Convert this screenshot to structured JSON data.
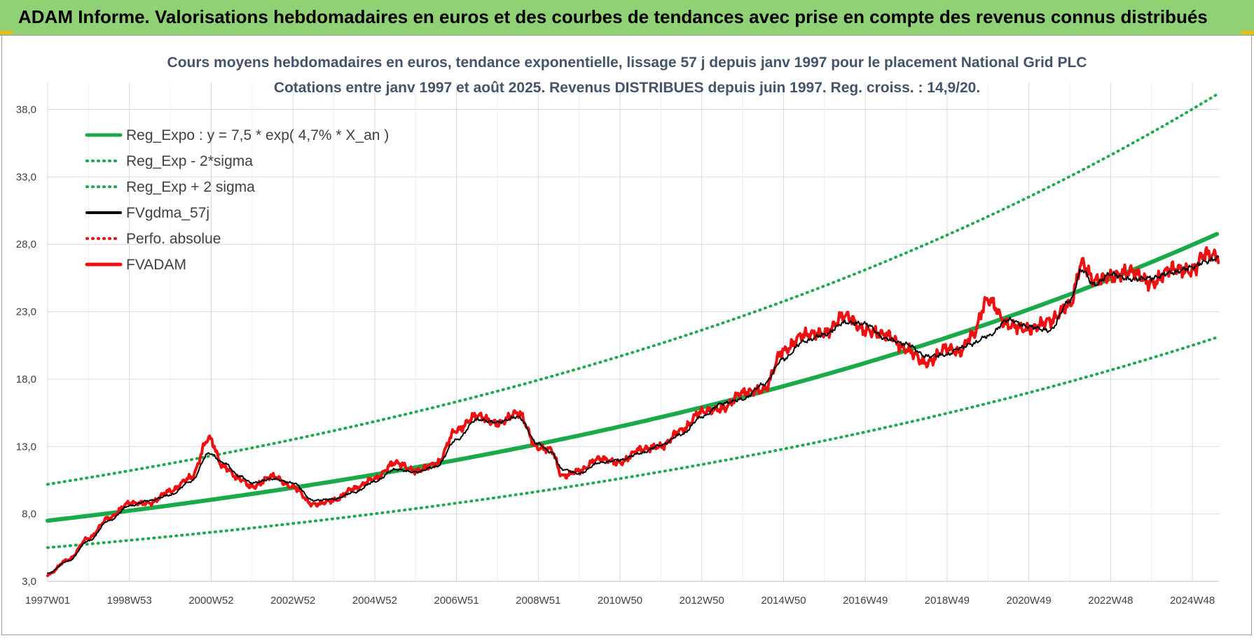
{
  "banner": {
    "title": "ADAM Informe. Valorisations hebdomadaires en euros et des courbes de tendances avec prise en compte des revenus connus distribués"
  },
  "colors": {
    "banner_bg": "#8fd174",
    "trend": "#1aaa4a",
    "fv": "#000000",
    "adam": "#ee1111",
    "perf": "#ee1111",
    "grid": "#d9d9d9"
  },
  "chart_data": {
    "type": "line",
    "title": "Cours moyens hebdomadaires en euros, tendance exponentielle, lissage 57 j depuis janv 1997 pour le placement National Grid PLC",
    "subtitle": "Cotations entre janv 1997 et août 2025. Revenus DISTRIBUES depuis juin 1997. Reg. croiss. : 14,9/20.",
    "xlabel": "",
    "ylabel": "",
    "xlim": [
      1997.0,
      2025.65
    ],
    "ylim": [
      3,
      40
    ],
    "y_ticks": [
      "3,0",
      "8,0",
      "13,0",
      "18,0",
      "23,0",
      "28,0",
      "33,0",
      "38,0"
    ],
    "y_tick_values": [
      3,
      8,
      13,
      18,
      23,
      28,
      33,
      38
    ],
    "x_ticks": [
      "1997W01",
      "1998W53",
      "2000W52",
      "2002W52",
      "2004W52",
      "2006W51",
      "2008W51",
      "2010W50",
      "2012W50",
      "2014W50",
      "2016W49",
      "2018W49",
      "2020W49",
      "2022W48",
      "2024W48"
    ],
    "x_tick_values": [
      1997.0,
      1999.0,
      2001.0,
      2003.0,
      2005.0,
      2007.0,
      2009.0,
      2011.0,
      2013.0,
      2015.0,
      2017.0,
      2019.0,
      2021.0,
      2023.0,
      2025.0
    ],
    "grid": true,
    "legend_position": "top-left",
    "series": [
      {
        "name": "Reg_Expo : y = 7,5 * exp( 4,7% *  X_an )",
        "style": "solid-thick",
        "color": "#1aaa4a",
        "x": [
          1997.0,
          1999.0,
          2001.0,
          2003.0,
          2005.0,
          2007.0,
          2009.0,
          2011.0,
          2013.0,
          2015.0,
          2017.0,
          2019.0,
          2021.0,
          2023.0,
          2025.0,
          2025.65
        ],
        "y": [
          7.5,
          8.24,
          9.05,
          9.93,
          10.9,
          11.97,
          13.15,
          14.44,
          15.85,
          17.41,
          19.11,
          20.99,
          23.05,
          25.31,
          27.79,
          28.65
        ]
      },
      {
        "name": "Reg_Exp - 2*sigma",
        "style": "dotted",
        "color": "#1aaa4a",
        "x": [
          1997.0,
          1999.0,
          2001.0,
          2003.0,
          2005.0,
          2007.0,
          2009.0,
          2011.0,
          2013.0,
          2015.0,
          2017.0,
          2019.0,
          2021.0,
          2023.0,
          2025.0,
          2025.65
        ],
        "y": [
          5.5,
          6.04,
          6.63,
          7.28,
          7.99,
          8.78,
          9.64,
          10.59,
          11.62,
          12.77,
          14.02,
          15.39,
          16.9,
          18.56,
          20.38,
          21.0
        ]
      },
      {
        "name": "Reg_Exp + 2 sigma",
        "style": "dotted",
        "color": "#1aaa4a",
        "x": [
          1997.0,
          1999.0,
          2001.0,
          2003.0,
          2005.0,
          2007.0,
          2009.0,
          2011.0,
          2013.0,
          2015.0,
          2017.0,
          2019.0,
          2021.0,
          2023.0,
          2025.0,
          2025.65
        ],
        "y": [
          10.2,
          11.2,
          12.3,
          13.5,
          14.83,
          16.28,
          17.88,
          19.63,
          21.56,
          23.67,
          26.0,
          28.55,
          31.35,
          34.42,
          37.8,
          38.96
        ]
      },
      {
        "name": "FVgdma_57j",
        "style": "solid",
        "color": "#000000",
        "x": [
          1997.0,
          1997.5,
          1998.0,
          1998.5,
          1999.0,
          1999.5,
          2000.0,
          2000.5,
          2000.95,
          2001.3,
          2001.7,
          2002.0,
          2002.5,
          2003.0,
          2003.5,
          2004.0,
          2004.5,
          2005.0,
          2005.5,
          2006.0,
          2006.5,
          2007.0,
          2007.5,
          2008.0,
          2008.5,
          2009.0,
          2009.3,
          2009.6,
          2010.0,
          2010.5,
          2011.0,
          2011.5,
          2012.0,
          2012.5,
          2013.0,
          2013.5,
          2014.0,
          2014.5,
          2015.0,
          2015.5,
          2016.0,
          2016.5,
          2017.0,
          2017.5,
          2018.0,
          2018.5,
          2019.0,
          2019.3,
          2019.6,
          2020.0,
          2020.5,
          2021.0,
          2021.5,
          2022.0,
          2022.3,
          2022.6,
          2023.0,
          2023.5,
          2024.0,
          2024.5,
          2025.0,
          2025.3,
          2025.65
        ],
        "y": [
          3.6,
          4.5,
          6.0,
          7.5,
          8.6,
          9.0,
          9.4,
          10.4,
          12.5,
          11.8,
          10.8,
          10.3,
          10.6,
          10.3,
          9.0,
          9.1,
          9.6,
          10.4,
          11.3,
          11.1,
          11.5,
          13.5,
          15.0,
          14.8,
          15.2,
          13.2,
          12.6,
          11.3,
          11.0,
          11.8,
          12.0,
          12.5,
          13.1,
          13.9,
          15.2,
          16.2,
          16.5,
          17.6,
          19.5,
          20.8,
          21.3,
          22.2,
          22.1,
          21.0,
          20.6,
          19.7,
          19.8,
          20.3,
          20.6,
          21.2,
          22.4,
          21.9,
          21.6,
          23.8,
          26.1,
          25.0,
          25.8,
          25.4,
          25.5,
          25.9,
          26.3,
          26.7,
          27.0
        ]
      },
      {
        "name": "Perfo. absolue",
        "style": "dotted",
        "color": "#ee1111",
        "x": [],
        "y": []
      },
      {
        "name": "FVADAM",
        "style": "solid-thick",
        "color": "#ee1111",
        "x": [
          1997.0,
          1997.5,
          1998.0,
          1998.5,
          1999.0,
          1999.5,
          2000.0,
          2000.5,
          2000.95,
          2001.3,
          2001.7,
          2002.0,
          2002.5,
          2003.0,
          2003.5,
          2004.0,
          2004.5,
          2005.0,
          2005.5,
          2006.0,
          2006.5,
          2007.0,
          2007.5,
          2008.0,
          2008.5,
          2009.0,
          2009.3,
          2009.6,
          2010.0,
          2010.5,
          2011.0,
          2011.5,
          2012.0,
          2012.5,
          2013.0,
          2013.5,
          2014.0,
          2014.5,
          2015.0,
          2015.5,
          2016.0,
          2016.5,
          2017.0,
          2017.5,
          2018.0,
          2018.5,
          2019.0,
          2019.3,
          2019.6,
          2020.0,
          2020.5,
          2021.0,
          2021.5,
          2022.0,
          2022.3,
          2022.6,
          2023.0,
          2023.5,
          2024.0,
          2024.5,
          2025.0,
          2025.3,
          2025.65
        ],
        "y": [
          3.5,
          4.6,
          6.2,
          7.7,
          8.8,
          8.8,
          9.7,
          10.7,
          13.6,
          11.5,
          10.6,
          10.0,
          10.8,
          10.0,
          8.7,
          9.0,
          9.9,
          10.6,
          11.8,
          11.2,
          11.7,
          14.2,
          15.3,
          14.7,
          15.5,
          12.9,
          12.8,
          10.8,
          11.2,
          12.1,
          11.8,
          12.8,
          13.0,
          14.2,
          15.6,
          15.8,
          17.0,
          17.2,
          20.1,
          21.3,
          21.4,
          22.7,
          21.6,
          21.3,
          20.2,
          19.2,
          20.3,
          20.0,
          21.2,
          23.9,
          22.0,
          21.7,
          22.3,
          23.5,
          26.6,
          25.3,
          25.6,
          26.0,
          25.1,
          26.2,
          26.0,
          27.3,
          27.1
        ]
      }
    ]
  }
}
